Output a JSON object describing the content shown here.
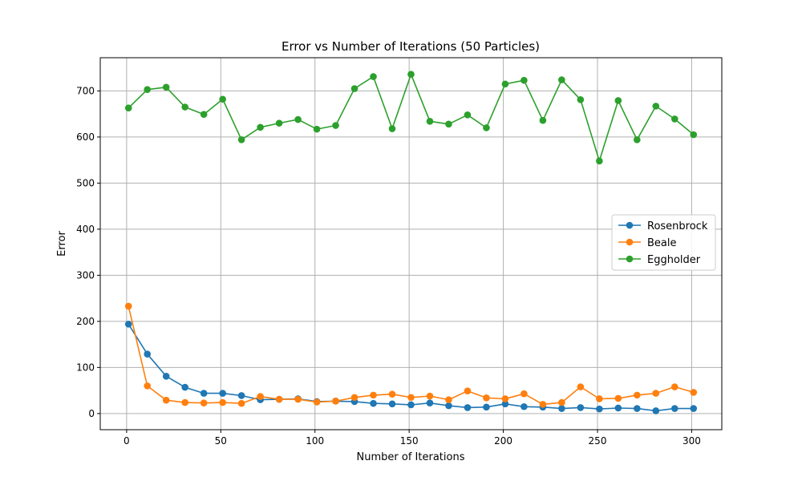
{
  "chart_data": {
    "type": "line",
    "title": "Error vs Number of Iterations (50 Particles)",
    "xlabel": "Number of Iterations",
    "ylabel": "Error",
    "xlim": [
      -14,
      316
    ],
    "ylim": [
      -35,
      772
    ],
    "x_ticks": [
      0,
      50,
      100,
      150,
      200,
      250,
      300
    ],
    "y_ticks": [
      0,
      100,
      200,
      300,
      400,
      500,
      600,
      700
    ],
    "grid": true,
    "legend_placement": "center-right",
    "x": [
      1,
      11,
      21,
      31,
      41,
      51,
      61,
      71,
      81,
      91,
      101,
      111,
      121,
      131,
      141,
      151,
      161,
      171,
      181,
      191,
      201,
      211,
      221,
      231,
      241,
      251,
      261,
      271,
      281,
      291,
      301
    ],
    "series": [
      {
        "name": "Rosenbrock",
        "color": "#1f77b4",
        "values": [
          194,
          129,
          81,
          57,
          44,
          44,
          39,
          30,
          31,
          32,
          26,
          27,
          26,
          22,
          21,
          19,
          23,
          17,
          13,
          14,
          21,
          15,
          14,
          11,
          13,
          10,
          12,
          11,
          6,
          11,
          11
        ]
      },
      {
        "name": "Beale",
        "color": "#ff7f0e",
        "values": [
          233,
          60,
          29,
          24,
          23,
          24,
          22,
          37,
          31,
          31,
          25,
          27,
          35,
          40,
          42,
          35,
          38,
          30,
          49,
          34,
          32,
          43,
          20,
          24,
          58,
          32,
          33,
          40,
          44,
          58,
          46
        ]
      },
      {
        "name": "Eggholder",
        "color": "#2ca02c",
        "values": [
          663,
          703,
          708,
          665,
          649,
          682,
          594,
          621,
          630,
          638,
          617,
          625,
          705,
          731,
          618,
          736,
          634,
          628,
          648,
          620,
          715,
          723,
          636,
          724,
          681,
          548,
          679,
          594,
          667,
          639,
          605
        ]
      }
    ]
  }
}
